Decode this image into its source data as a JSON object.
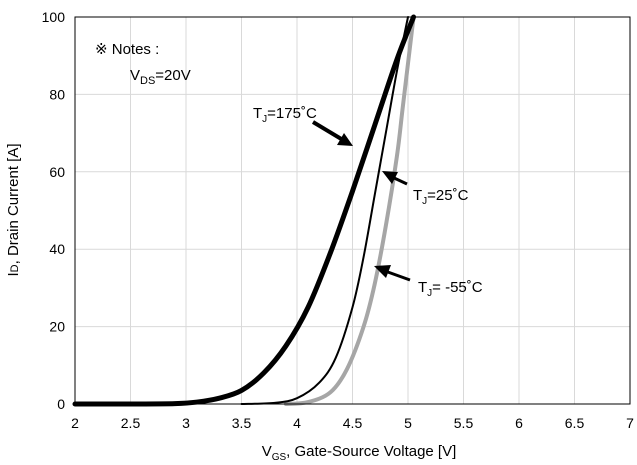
{
  "chart_data": {
    "type": "line",
    "xlabel": {
      "main": "V",
      "sub": "GS",
      "rest": ", Gate-Source Voltage [V]"
    },
    "ylabel": {
      "main": "I",
      "small": "D",
      "rest": ", Drain Current [A]"
    },
    "xlim": [
      2,
      7
    ],
    "ylim": [
      0,
      100
    ],
    "x_ticks": [
      "2",
      "2.5",
      "3",
      "3.5",
      "4",
      "4.5",
      "5",
      "5.5",
      "6",
      "6.5",
      "7"
    ],
    "y_ticks": [
      "0",
      "20",
      "40",
      "60",
      "80",
      "100"
    ],
    "grid": true,
    "notes": {
      "title": "※ Notes :",
      "line": {
        "main": "V",
        "sub": "DS",
        "rest": "=20V"
      }
    },
    "series": [
      {
        "name": "TJ=175°C",
        "label": {
          "main": "T",
          "sub": "J",
          "rest": "=175˚C"
        },
        "color": "#000000",
        "points": [
          [
            2.0,
            0
          ],
          [
            2.5,
            0
          ],
          [
            2.9,
            0.1
          ],
          [
            3.1,
            0.5
          ],
          [
            3.3,
            1.5
          ],
          [
            3.5,
            3.5
          ],
          [
            3.7,
            8
          ],
          [
            3.9,
            15
          ],
          [
            4.1,
            25
          ],
          [
            4.3,
            39
          ],
          [
            4.5,
            55
          ],
          [
            4.7,
            72
          ],
          [
            4.9,
            89
          ],
          [
            5.05,
            100
          ]
        ]
      },
      {
        "name": "TJ=25°C",
        "label": {
          "main": "T",
          "sub": "J",
          "rest": "=25˚C"
        },
        "color": "#000000",
        "points": [
          [
            3.5,
            0
          ],
          [
            3.8,
            0.3
          ],
          [
            4.0,
            1.5
          ],
          [
            4.2,
            5.5
          ],
          [
            4.35,
            12
          ],
          [
            4.5,
            25
          ],
          [
            4.6,
            38
          ],
          [
            4.7,
            54
          ],
          [
            4.8,
            70
          ],
          [
            4.9,
            86
          ],
          [
            5.0,
            100
          ]
        ]
      },
      {
        "name": "TJ=-55°C",
        "label": {
          "main": "T",
          "sub": "J",
          "rest": "= -55˚C"
        },
        "color": "#a6a6a6",
        "points": [
          [
            3.9,
            0
          ],
          [
            4.1,
            0.5
          ],
          [
            4.3,
            3
          ],
          [
            4.45,
            9
          ],
          [
            4.6,
            20
          ],
          [
            4.7,
            31
          ],
          [
            4.8,
            46
          ],
          [
            4.9,
            64
          ],
          [
            4.95,
            76
          ],
          [
            5.0,
            88
          ],
          [
            5.05,
            100
          ]
        ]
      }
    ]
  }
}
